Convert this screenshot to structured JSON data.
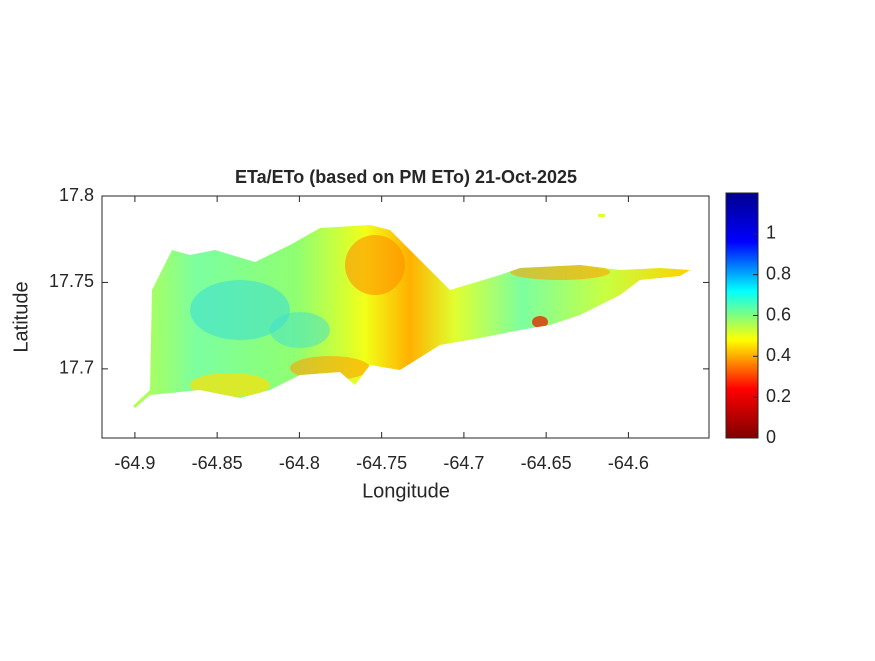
{
  "chart_data": {
    "type": "raster-map",
    "title": "ETa/ETo (based on PM ETo) 21-Oct-2025",
    "xlabel": "Longitude",
    "ylabel": "Latitude",
    "xlim": [
      -64.92,
      -64.551
    ],
    "xticks": [
      -64.9,
      -64.85,
      -64.8,
      -64.75,
      -64.7,
      -64.65,
      -64.6
    ],
    "ylim": [
      17.66,
      17.8
    ],
    "yticks": [
      17.7,
      17.75,
      17.8
    ],
    "colorbar": {
      "lim": [
        0,
        1.2
      ],
      "ticks": [
        0,
        0.2,
        0.4,
        0.6,
        0.8,
        1
      ],
      "colormap": [
        "#800000",
        "#ff0000",
        "#ffff00",
        "#00ffff",
        "#0000ff",
        "#00008f"
      ]
    }
  }
}
